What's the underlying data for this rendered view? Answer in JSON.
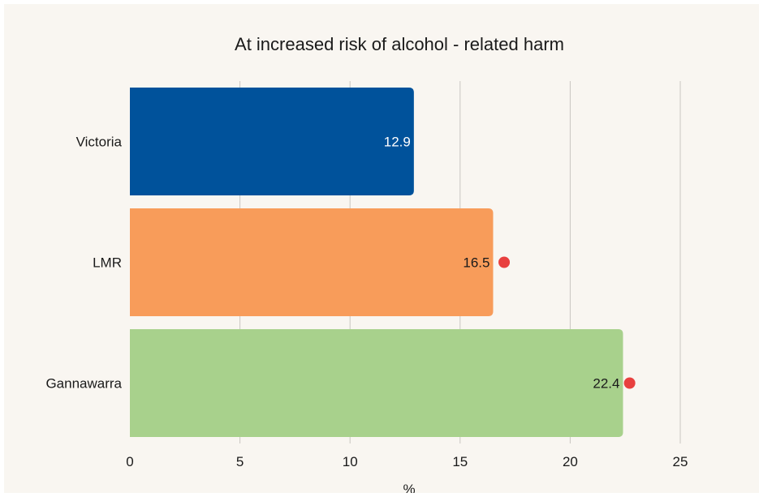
{
  "chart_data": {
    "type": "bar",
    "orientation": "horizontal",
    "title": "At increased risk of alcohol - related harm",
    "xlabel": "%",
    "ylabel": "",
    "categories": [
      "Victoria",
      "LMR",
      "Gannawarra"
    ],
    "values": [
      12.9,
      16.5,
      22.4
    ],
    "value_labels": [
      "12.9",
      "16.5",
      "22.4"
    ],
    "colors": [
      "#00529b",
      "#f89c5a",
      "#a8d18c"
    ],
    "label_colors": [
      "#ffffff",
      "#1a1a1a",
      "#1a1a1a"
    ],
    "markers": [
      {
        "category": "LMR",
        "value": 17.0,
        "color": "#e8403f"
      },
      {
        "category": "Gannawarra",
        "value": 22.7,
        "color": "#e8403f"
      }
    ],
    "xlim": [
      0,
      25
    ],
    "xticks": [
      0,
      5,
      10,
      15,
      20,
      25
    ],
    "grid": "vertical",
    "legend": "none"
  }
}
